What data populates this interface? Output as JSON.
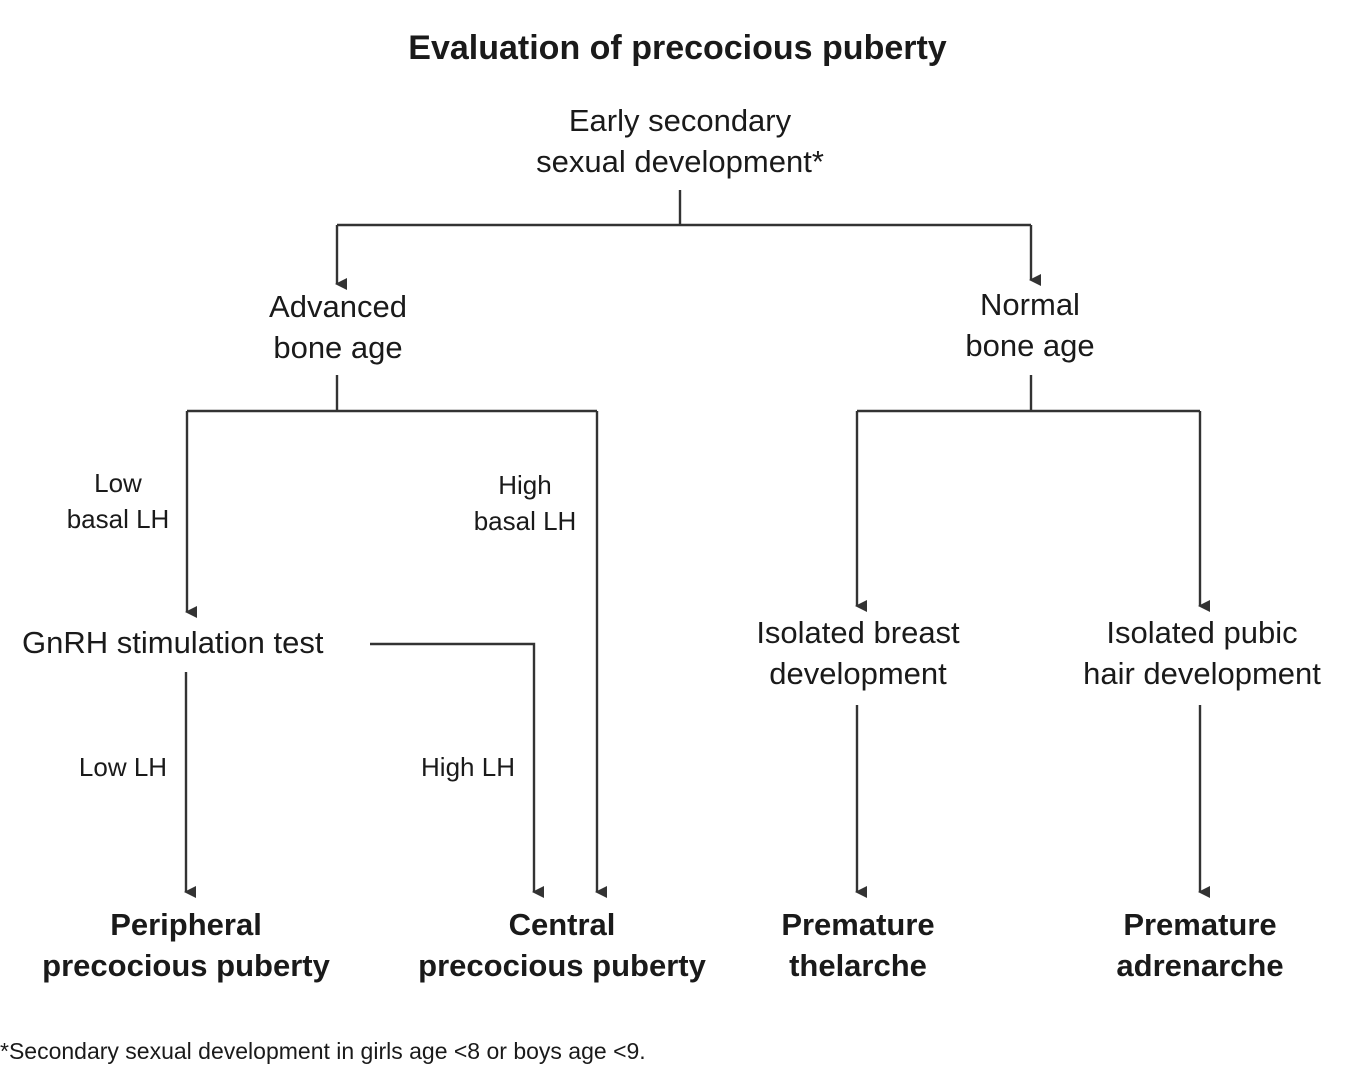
{
  "title": "Evaluation of precocious puberty",
  "nodes": {
    "root": [
      "Early secondary",
      "sexual development*"
    ],
    "advanced_bone_age": [
      "Advanced",
      "bone age"
    ],
    "normal_bone_age": [
      "Normal",
      "bone age"
    ],
    "gnrh_test": [
      "GnRH stimulation test"
    ],
    "isolated_breast": [
      "Isolated breast",
      "development"
    ],
    "isolated_pubic": [
      "Isolated pubic",
      "hair development"
    ],
    "peripheral": [
      "Peripheral",
      "precocious puberty"
    ],
    "central": [
      "Central",
      "precocious puberty"
    ],
    "thelarche": [
      "Premature",
      "thelarche"
    ],
    "adrenarche": [
      "Premature",
      "adrenarche"
    ]
  },
  "edge_labels": {
    "low_basal_lh": [
      "Low",
      "basal LH"
    ],
    "high_basal_lh": [
      "High",
      "basal LH"
    ],
    "low_lh": [
      "Low LH"
    ],
    "high_lh": [
      "High LH"
    ]
  },
  "footnote": "*Secondary sexual development in girls age <8 or boys age <9.",
  "colors": {
    "text": "#1a1a1a",
    "line": "#333333",
    "background": "#ffffff"
  }
}
